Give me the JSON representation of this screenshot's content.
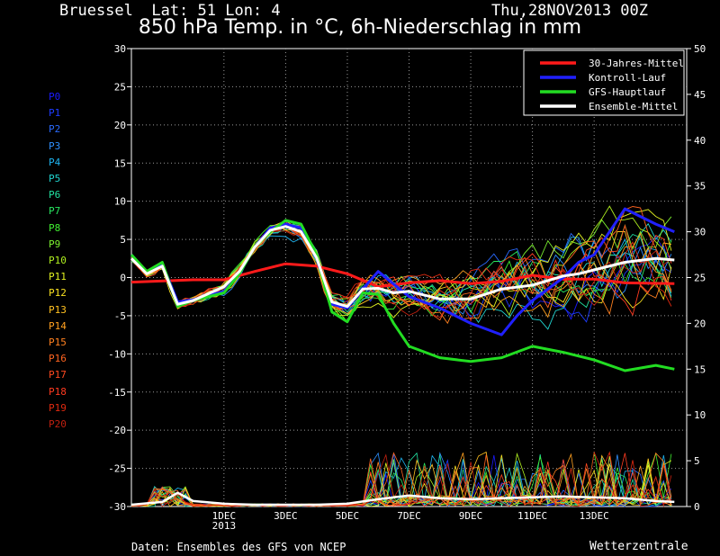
{
  "header": {
    "location": "Bruessel  Lat: 51 Lon: 4",
    "run": "Thu,28NOV2013 00Z",
    "title": "850 hPa Temp. in °C, 6h-Niederschlag in mm"
  },
  "footer": {
    "source": "Daten: Ensembles des GFS von NCEP",
    "brand": "Wetterzentrale"
  },
  "members": [
    {
      "label": "P0",
      "color": "#1a1aff"
    },
    {
      "label": "P1",
      "color": "#1e3cff"
    },
    {
      "label": "P2",
      "color": "#2a6aff"
    },
    {
      "label": "P3",
      "color": "#2e90ff"
    },
    {
      "label": "P4",
      "color": "#1eb4f0"
    },
    {
      "label": "P5",
      "color": "#20d4d0"
    },
    {
      "label": "P6",
      "color": "#22e0a0"
    },
    {
      "label": "P7",
      "color": "#28e860"
    },
    {
      "label": "P8",
      "color": "#40ee30"
    },
    {
      "label": "P9",
      "color": "#7cf030"
    },
    {
      "label": "P10",
      "color": "#b0f020"
    },
    {
      "label": "P11",
      "color": "#e0f020"
    },
    {
      "label": "P12",
      "color": "#f8e020"
    },
    {
      "label": "P13",
      "color": "#ffc020"
    },
    {
      "label": "P14",
      "color": "#ffa020"
    },
    {
      "label": "P15",
      "color": "#ff8020"
    },
    {
      "label": "P16",
      "color": "#ff6420"
    },
    {
      "label": "P17",
      "color": "#ff4a20"
    },
    {
      "label": "P18",
      "color": "#ff3a20"
    },
    {
      "label": "P19",
      "color": "#e02a10"
    },
    {
      "label": "P20",
      "color": "#c02010"
    }
  ],
  "chart_data": {
    "type": "line",
    "y_left": {
      "min": -30,
      "max": 30,
      "ticks": [
        30,
        25,
        20,
        15,
        10,
        5,
        0,
        -5,
        -10,
        -15,
        -20,
        -25,
        -30
      ]
    },
    "y_right": {
      "min": 0,
      "max": 50,
      "ticks": [
        50,
        45,
        40,
        35,
        30,
        25,
        20,
        15,
        10,
        5,
        0
      ]
    },
    "x": {
      "min_day": -3,
      "max_day": 15,
      "ticks": [
        {
          "day": 0,
          "label": "1DEC",
          "sub": "2013"
        },
        {
          "day": 2,
          "label": "3DEC"
        },
        {
          "day": 4,
          "label": "5DEC"
        },
        {
          "day": 6,
          "label": "7DEC"
        },
        {
          "day": 8,
          "label": "9DEC"
        },
        {
          "day": 10,
          "label": "11DEC"
        },
        {
          "day": 12,
          "label": "13DEC"
        }
      ]
    },
    "grid": true,
    "legend": {
      "position": "top-right",
      "items": [
        {
          "label": "30-Jahres-Mittel",
          "color": "#ff1a1a"
        },
        {
          "label": "Kontroll-Lauf",
          "color": "#2020ff"
        },
        {
          "label": "GFS-Hauptlauf",
          "color": "#22dd22"
        },
        {
          "label": "Ensemble-Mittel",
          "color": "#ffffff"
        }
      ]
    },
    "series": [
      {
        "name": "30-Jahres-Mittel",
        "color": "#ff1a1a",
        "x": [
          -3,
          -1,
          0,
          1,
          2,
          3,
          4,
          5,
          6,
          7,
          8,
          9,
          10,
          11,
          12,
          13,
          14.6
        ],
        "y": [
          -0.6,
          -0.3,
          -0.3,
          0.8,
          1.8,
          1.5,
          0.5,
          -1.2,
          -0.7,
          -0.4,
          -0.8,
          -0.5,
          0.3,
          -0.2,
          -0.2,
          -0.7,
          -0.8
        ]
      },
      {
        "name": "Kontroll-Lauf",
        "color": "#2020ff",
        "x": [
          -3,
          -2.5,
          -2,
          -1.5,
          -1,
          0,
          0.5,
          1,
          1.5,
          2,
          2.5,
          3,
          3.5,
          4,
          4.5,
          5,
          6,
          7,
          8,
          9,
          9.5,
          10,
          11,
          11.5,
          12,
          12.5,
          13,
          14,
          14.6
        ],
        "y": [
          3.0,
          0.6,
          1.8,
          -3.2,
          -2.9,
          -1.8,
          0.5,
          4.0,
          6.5,
          7.0,
          6.5,
          2.5,
          -3.5,
          -4.0,
          -1.5,
          0.8,
          -2.5,
          -4.0,
          -6.0,
          -7.5,
          -5.0,
          -3.0,
          0,
          2.0,
          3.0,
          6.0,
          9.0,
          7.0,
          6.0
        ]
      },
      {
        "name": "GFS-Hauptlauf",
        "color": "#22dd22",
        "x": [
          -3,
          -2.5,
          -2,
          -1.5,
          -1,
          0,
          0.5,
          1,
          1.5,
          2,
          2.5,
          3,
          3.5,
          4,
          4.5,
          5,
          5.5,
          6,
          7,
          8,
          9,
          10,
          11,
          12,
          13,
          14,
          14.6
        ],
        "y": [
          3.0,
          0.8,
          2.0,
          -3.8,
          -3.0,
          -2.0,
          0.5,
          4.0,
          6.0,
          7.5,
          7.0,
          3.0,
          -4.5,
          -5.8,
          -2.0,
          -2.2,
          -6.0,
          -9.0,
          -10.5,
          -11.0,
          -10.5,
          -9.0,
          -9.8,
          -10.8,
          -12.2,
          -11.5,
          -12.0
        ]
      },
      {
        "name": "Ensemble-Mittel",
        "color": "#ffffff",
        "x": [
          -3,
          -2.5,
          -2,
          -1.5,
          -1,
          0,
          0.5,
          1,
          1.5,
          2,
          2.5,
          3,
          3.5,
          4,
          4.5,
          5,
          5.5,
          6,
          7,
          8,
          9,
          10,
          11,
          11.5,
          12,
          13,
          14,
          14.6
        ],
        "y": [
          2.5,
          0.5,
          1.5,
          -3.5,
          -3.0,
          -1.2,
          0.8,
          4.0,
          6.2,
          6.7,
          6.0,
          2.6,
          -3.2,
          -3.8,
          -1.5,
          -1.4,
          -2.0,
          -1.8,
          -2.8,
          -2.8,
          -1.5,
          -1.0,
          0.2,
          0.5,
          1.0,
          2.0,
          2.5,
          2.3
        ]
      },
      {
        "name": "Niederschlag Ensemble-Mittel",
        "axis": "right",
        "color": "#ffffff",
        "x": [
          -3,
          -2,
          -1.5,
          -1,
          0,
          1,
          2,
          3,
          4,
          5,
          6,
          7,
          8,
          9,
          10,
          11,
          12,
          13,
          14,
          14.6
        ],
        "y": [
          0.2,
          0.5,
          1.5,
          0.6,
          0.3,
          0.2,
          0.2,
          0.2,
          0.3,
          0.8,
          1.2,
          0.9,
          0.8,
          0.9,
          1.0,
          1.1,
          1.0,
          0.9,
          0.6,
          0.5
        ]
      }
    ]
  }
}
